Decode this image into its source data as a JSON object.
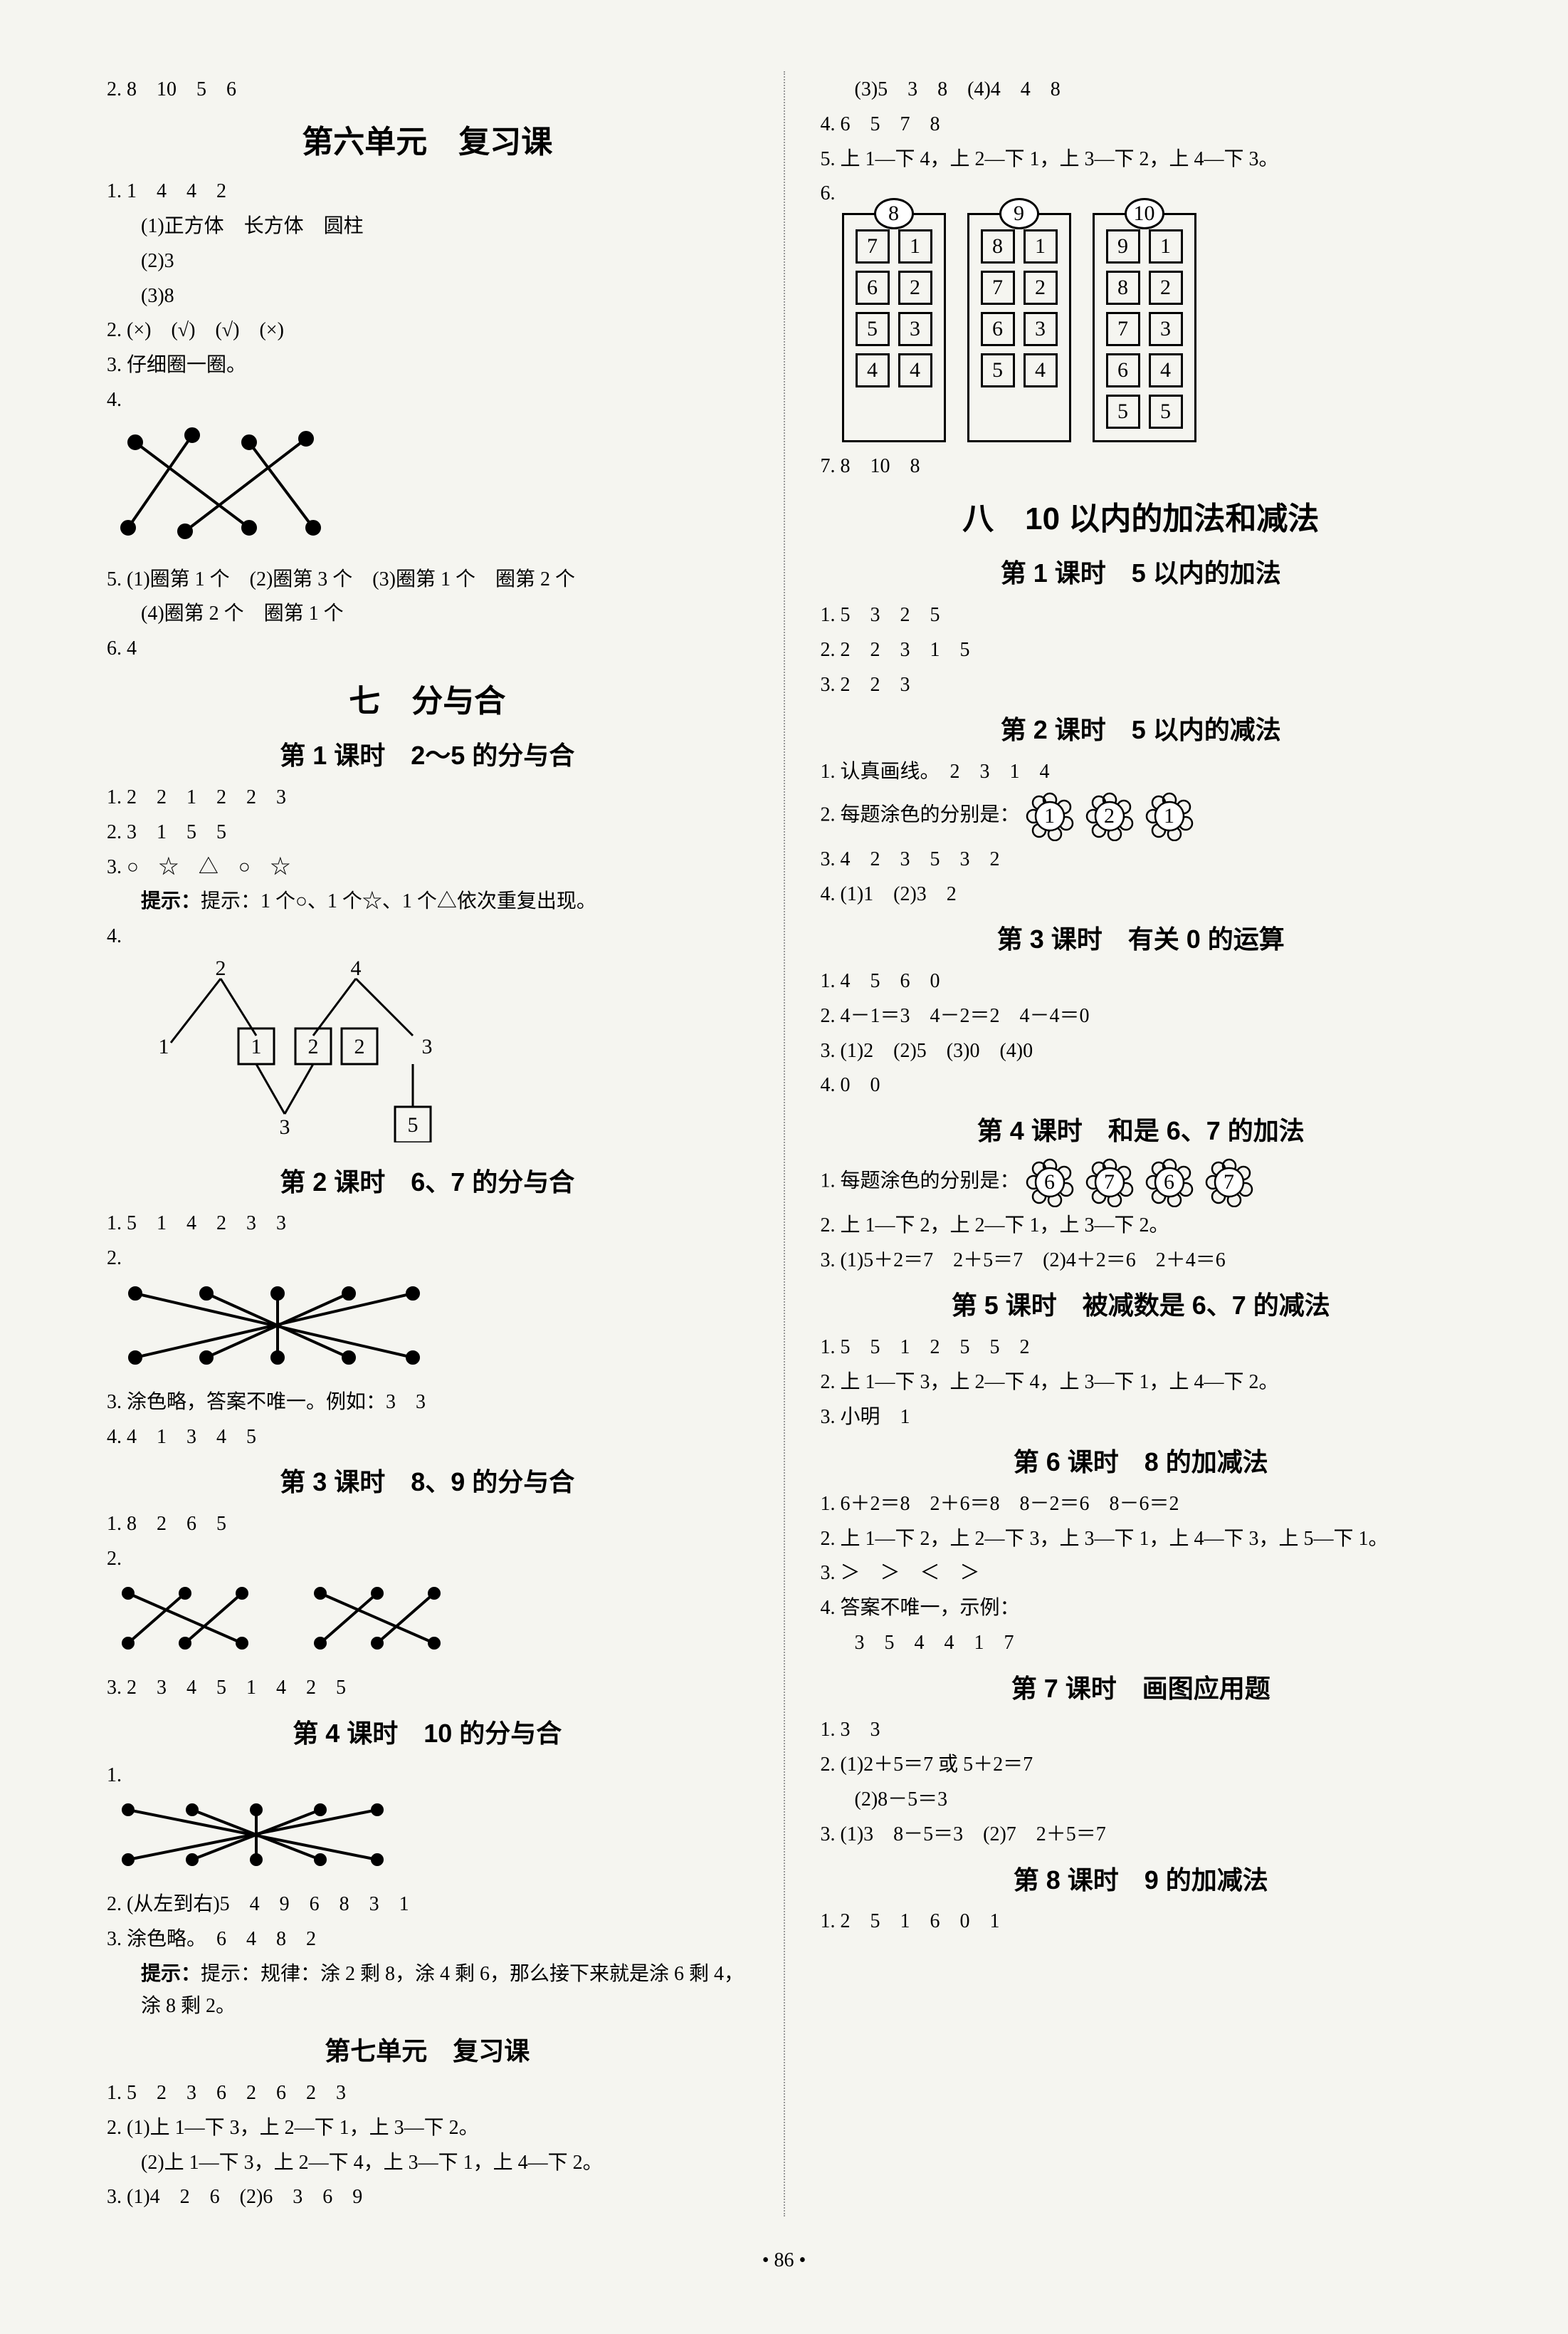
{
  "page_number": "• 86 •",
  "left": {
    "top": "2. 8　10　5　6",
    "u6_title": "第六单元　复习课",
    "u6": {
      "l1": "1. 1　4　4　2",
      "l1a": "(1)正方体　长方体　圆柱",
      "l1b": "(2)3",
      "l1c": "(3)8",
      "l2": "2. (×)　(√)　(√)　(×)",
      "l3": "3. 仔细圈一圈。",
      "l4": "4.",
      "l5": "5. (1)圈第 1 个　(2)圈第 3 个　(3)圈第 1 个　圈第 2 个",
      "l5a": "(4)圈第 2 个　圈第 1 个",
      "l6": "6. 4"
    },
    "u7_title": "七　分与合",
    "u7s1_title": "第 1 课时　2～5 的分与合",
    "u7s1": {
      "l1": "1. 2　2　1　2　2　3",
      "l2": "2. 3　1　5　5",
      "l3": "3. ○　☆　△　○　☆",
      "l3hint": "提示：1 个○、1 个☆、1 个△依次重复出现。",
      "l4": "4."
    },
    "tree": {
      "t2": "2",
      "t4": "4",
      "n1": "1",
      "b1": "1",
      "b2": "2",
      "b2r": "2",
      "n3": "3",
      "m3": "3",
      "b5": "5"
    },
    "u7s2_title": "第 2 课时　6、7 的分与合",
    "u7s2": {
      "l1": "1. 5　1　4　2　3　3",
      "l2": "2.",
      "l3": "3. 涂色略，答案不唯一。例如：3　3",
      "l4": "4. 4　1　3　4　5"
    },
    "u7s3_title": "第 3 课时　8、9 的分与合",
    "u7s3": {
      "l1": "1. 8　2　6　5",
      "l2": "2.",
      "l3": "3. 2　3　4　5　1　4　2　5"
    },
    "u7s4_title": "第 4 课时　10 的分与合",
    "u7s4": {
      "l1": "1.",
      "l2": "2. (从左到右)5　4　9　6　8　3　1",
      "l3": "3. 涂色略。　6　4　8　2",
      "l3hint": "提示：规律：涂 2 剩 8，涂 4 剩 6，那么接下来就是涂 6 剩 4，涂 8 剩 2。"
    },
    "u7rev_title": "第七单元　复习课",
    "u7rev": {
      "l1": "1. 5　2　3　6　2　6　2　3",
      "l2a": "2. (1)上 1—下 3，上 2—下 1，上 3—下 2。",
      "l2b": "(2)上 1—下 3，上 2—下 4，上 3—下 1，上 4—下 2。",
      "l3": "3. (1)4　2　6　(2)6　3　6　9"
    }
  },
  "right": {
    "top1": "(3)5　3　8　(4)4　4　8",
    "top2": "4. 6　5　7　8",
    "top3": "5. 上 1—下 4，上 2—下 1，上 3—下 2，上 4—下 3。",
    "top4": "6.",
    "towers": [
      {
        "head": "8",
        "rows": [
          [
            "7",
            "1"
          ],
          [
            "6",
            "2"
          ],
          [
            "5",
            "3"
          ],
          [
            "4",
            "4"
          ]
        ]
      },
      {
        "head": "9",
        "rows": [
          [
            "8",
            "1"
          ],
          [
            "7",
            "2"
          ],
          [
            "6",
            "3"
          ],
          [
            "5",
            "4"
          ]
        ]
      },
      {
        "head": "10",
        "rows": [
          [
            "9",
            "1"
          ],
          [
            "8",
            "2"
          ],
          [
            "7",
            "3"
          ],
          [
            "6",
            "4"
          ],
          [
            "5",
            "5"
          ]
        ]
      }
    ],
    "top5": "7. 8　10　8",
    "u8_title": "八　10 以内的加法和减法",
    "u8s1_title": "第 1 课时　5 以内的加法",
    "u8s1": {
      "l1": "1. 5　3　2　5",
      "l2": "2. 2　2　3　1　5",
      "l3": "3. 2　2　3"
    },
    "u8s2_title": "第 2 课时　5 以内的减法",
    "u8s2": {
      "l1": "1. 认真画线。　2　3　1　4",
      "l2pre": "2. 每题涂色的分别是：",
      "flowers": [
        "1",
        "2",
        "1"
      ],
      "l3": "3. 4　2　3　5　3　2",
      "l4": "4. (1)1　(2)3　2"
    },
    "u8s3_title": "第 3 课时　有关 0 的运算",
    "u8s3": {
      "l1": "1. 4　5　6　0",
      "l2": "2. 4－1＝3　4－2＝2　4－4＝0",
      "l3": "3. (1)2　(2)5　(3)0　(4)0",
      "l4": "4. 0　0"
    },
    "u8s4_title": "第 4 课时　和是 6、7 的加法",
    "u8s4": {
      "l1pre": "1. 每题涂色的分别是：",
      "flowers": [
        "6",
        "7",
        "6",
        "7"
      ],
      "l2": "2. 上 1—下 2，上 2—下 1，上 3—下 2。",
      "l3": "3. (1)5＋2＝7　2＋5＝7　(2)4＋2＝6　2＋4＝6"
    },
    "u8s5_title": "第 5 课时　被减数是 6、7 的减法",
    "u8s5": {
      "l1": "1. 5　5　1　2　5　5　2",
      "l2": "2. 上 1—下 3，上 2—下 4，上 3—下 1，上 4—下 2。",
      "l3": "3. 小明　1"
    },
    "u8s6_title": "第 6 课时　8 的加减法",
    "u8s6": {
      "l1": "1. 6＋2＝8　2＋6＝8　8－2＝6　8－6＝2",
      "l2": "2. 上 1—下 2，上 2—下 3，上 3—下 1，上 4—下 3，上 5—下 1。",
      "l3": "3. ＞　＞　＜　＞",
      "l4": "4. 答案不唯一，示例：",
      "l4a": "3　5　4　4　1　7"
    },
    "u8s7_title": "第 7 课时　画图应用题",
    "u8s7": {
      "l1": "1. 3　3",
      "l2a": "2. (1)2＋5＝7 或 5＋2＝7",
      "l2b": "(2)8－5＝3",
      "l3": "3. (1)3　8－5＝3　(2)7　2＋5＝7"
    },
    "u8s8_title": "第 8 课时　9 的加减法",
    "u8s8": {
      "l1": "1. 2　5　1　6　0　1"
    }
  },
  "colors": {
    "ink": "#000000",
    "bg": "#f5f5f0",
    "divider": "#999999"
  }
}
